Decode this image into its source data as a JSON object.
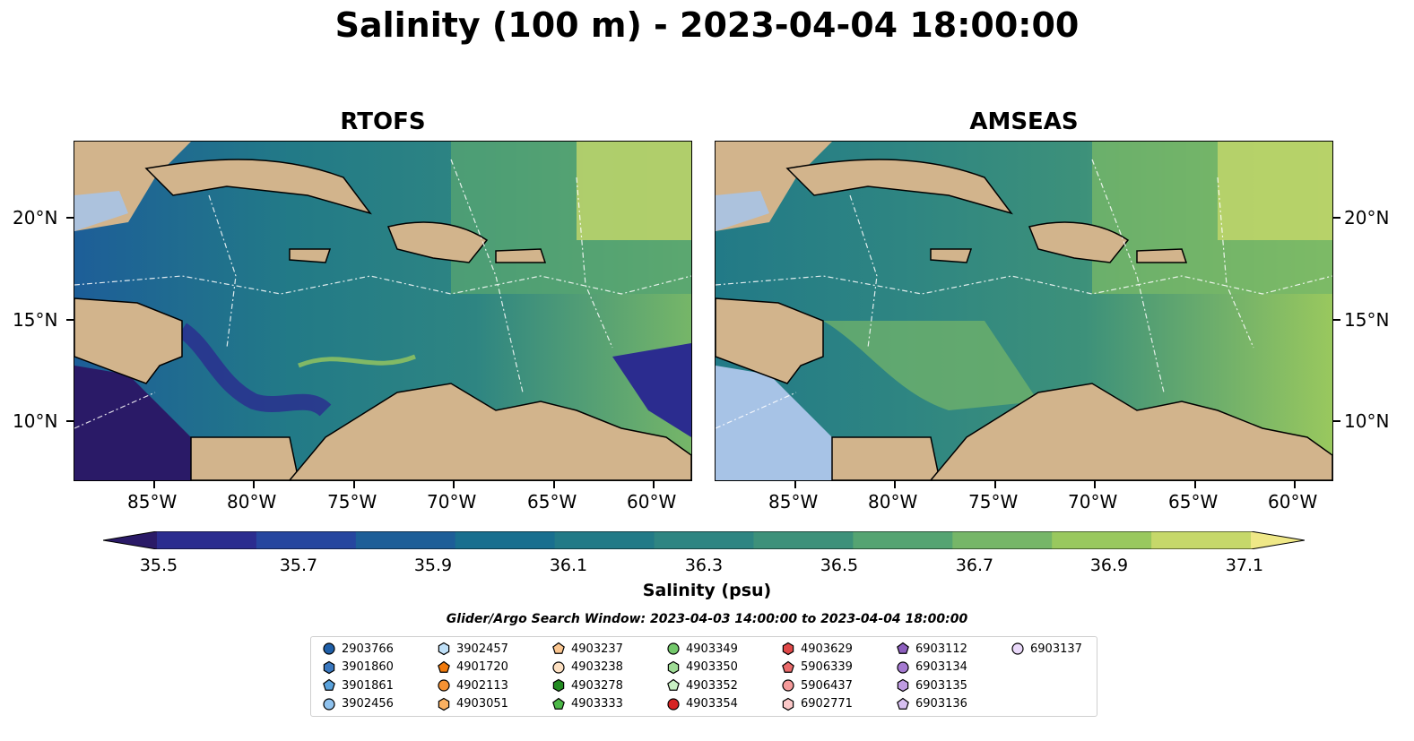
{
  "title": "Salinity (100 m) - 2023-04-04 18:00:00",
  "panels": [
    {
      "name": "RTOFS"
    },
    {
      "name": "AMSEAS"
    }
  ],
  "lat_labels": [
    "20°N",
    "15°N",
    "10°N"
  ],
  "lon_labels": [
    "85°W",
    "80°W",
    "75°W",
    "70°W",
    "65°W",
    "60°W"
  ],
  "colorbar": {
    "label": "Salinity (psu)",
    "ticks": [
      "35.5",
      "35.7",
      "35.9",
      "36.1",
      "36.3",
      "36.5",
      "36.7",
      "36.9",
      "37.1"
    ],
    "colors": [
      "#2a1a67",
      "#2b2c8f",
      "#26469f",
      "#1d5e98",
      "#196f8f",
      "#227a87",
      "#2e8582",
      "#3d917a",
      "#55a472",
      "#76b668",
      "#99c85e",
      "#c6d86a",
      "#efe887"
    ]
  },
  "search_window": "Glider/Argo Search Window: 2023-04-03 14:00:00 to 2023-04-04 18:00:00",
  "legend": [
    {
      "id": "2903766",
      "shape": "circle",
      "color": "#1f5fa8"
    },
    {
      "id": "3901860",
      "shape": "hexagon",
      "color": "#3a78bf"
    },
    {
      "id": "3901861",
      "shape": "pentagon",
      "color": "#5aa2dc"
    },
    {
      "id": "3902456",
      "shape": "circle",
      "color": "#8fc2ee"
    },
    {
      "id": "3902457",
      "shape": "hexagon",
      "color": "#bfe0f8"
    },
    {
      "id": "4901720",
      "shape": "pentagon",
      "color": "#f07a0c"
    },
    {
      "id": "4902113",
      "shape": "circle",
      "color": "#f59233"
    },
    {
      "id": "4903051",
      "shape": "hexagon",
      "color": "#f9b061"
    },
    {
      "id": "4903237",
      "shape": "pentagon",
      "color": "#fbc690"
    },
    {
      "id": "4903238",
      "shape": "circle",
      "color": "#fde0c2"
    },
    {
      "id": "4903278",
      "shape": "hexagon",
      "color": "#238b22"
    },
    {
      "id": "4903333",
      "shape": "pentagon",
      "color": "#4cb847"
    },
    {
      "id": "4903349",
      "shape": "circle",
      "color": "#73c86b"
    },
    {
      "id": "4903350",
      "shape": "hexagon",
      "color": "#9fdc96"
    },
    {
      "id": "4903352",
      "shape": "pentagon",
      "color": "#c9f0c4"
    },
    {
      "id": "4903354",
      "shape": "circle",
      "color": "#d62424"
    },
    {
      "id": "4903629",
      "shape": "hexagon",
      "color": "#e04848"
    },
    {
      "id": "5906339",
      "shape": "pentagon",
      "color": "#ea6a6a"
    },
    {
      "id": "5906437",
      "shape": "circle",
      "color": "#f59a9a"
    },
    {
      "id": "6902771",
      "shape": "hexagon",
      "color": "#fbc8c8"
    },
    {
      "id": "6903112",
      "shape": "pentagon",
      "color": "#8d5fbe"
    },
    {
      "id": "6903134",
      "shape": "circle",
      "color": "#a57ad1"
    },
    {
      "id": "6903135",
      "shape": "hexagon",
      "color": "#bf9ce2"
    },
    {
      "id": "6903136",
      "shape": "pentagon",
      "color": "#d6bff0"
    },
    {
      "id": "6903137",
      "shape": "circle",
      "color": "#ead9fa"
    }
  ]
}
